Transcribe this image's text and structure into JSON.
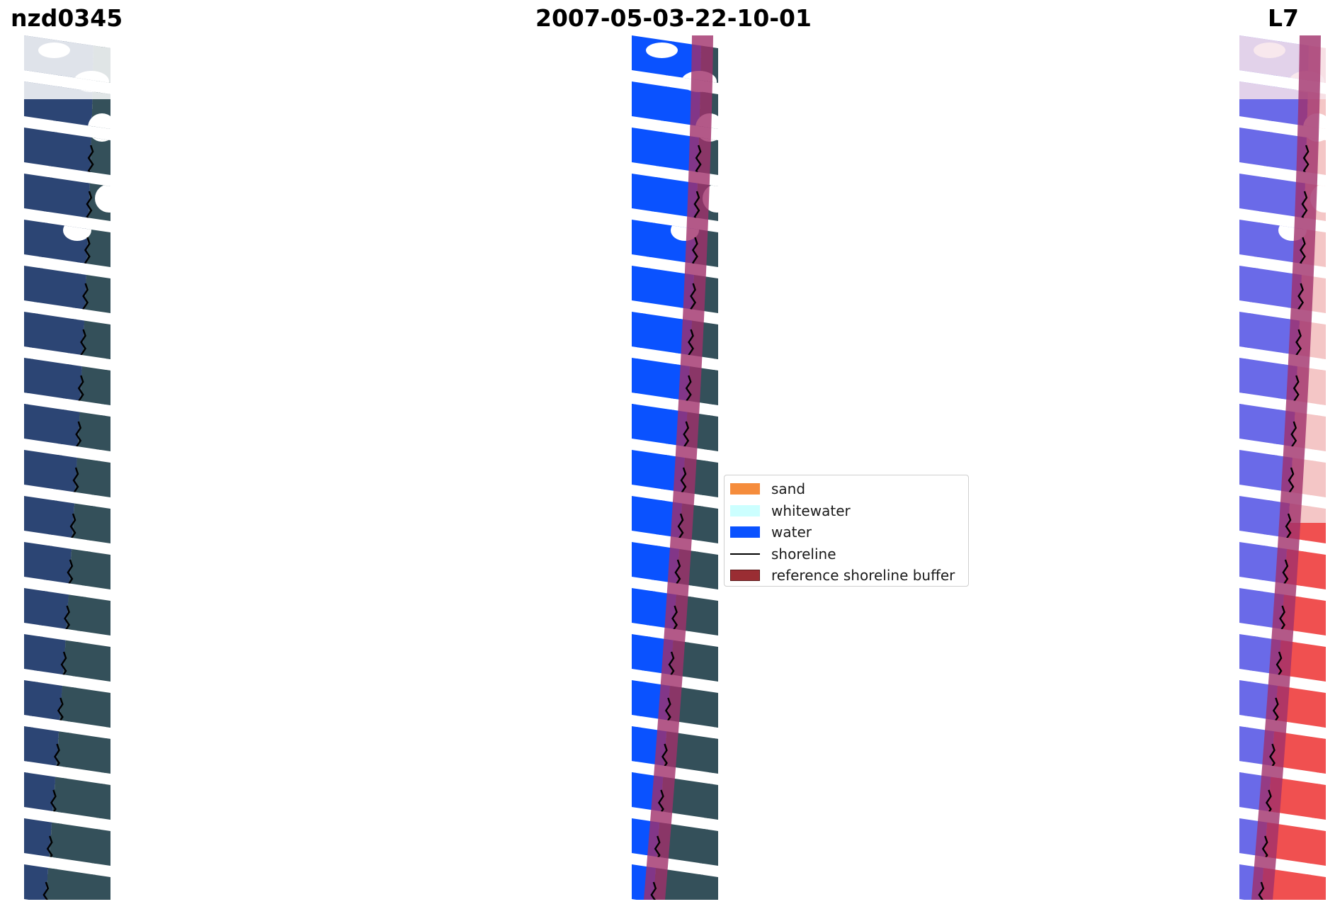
{
  "titles": {
    "site": "nzd0345",
    "date": "2007-05-03-22-10-01",
    "satellite": "L7"
  },
  "legend": [
    {
      "label": "sand",
      "type": "patch",
      "color": "#f58c3c"
    },
    {
      "label": "whitewater",
      "type": "patch",
      "color": "#ccffff"
    },
    {
      "label": "water",
      "type": "patch",
      "color": "#0a52ff"
    },
    {
      "label": "shoreline",
      "type": "line",
      "color": "#000000"
    },
    {
      "label": "reference shoreline buffer",
      "type": "patch",
      "color": "#9a2d33",
      "edge": "#5a1a1a"
    }
  ],
  "colors": {
    "rgb_water": "#2c4574",
    "rgb_land": "#34505a",
    "classified_water": "#0a52ff",
    "buffer_overlay": "#a0306a",
    "index_water": "#6a6ae8",
    "index_land": "#f05050",
    "shoreline": "#000000"
  },
  "panels": [
    {
      "name": "rgb-image"
    },
    {
      "name": "classified-image"
    },
    {
      "name": "water-index-image"
    }
  ]
}
